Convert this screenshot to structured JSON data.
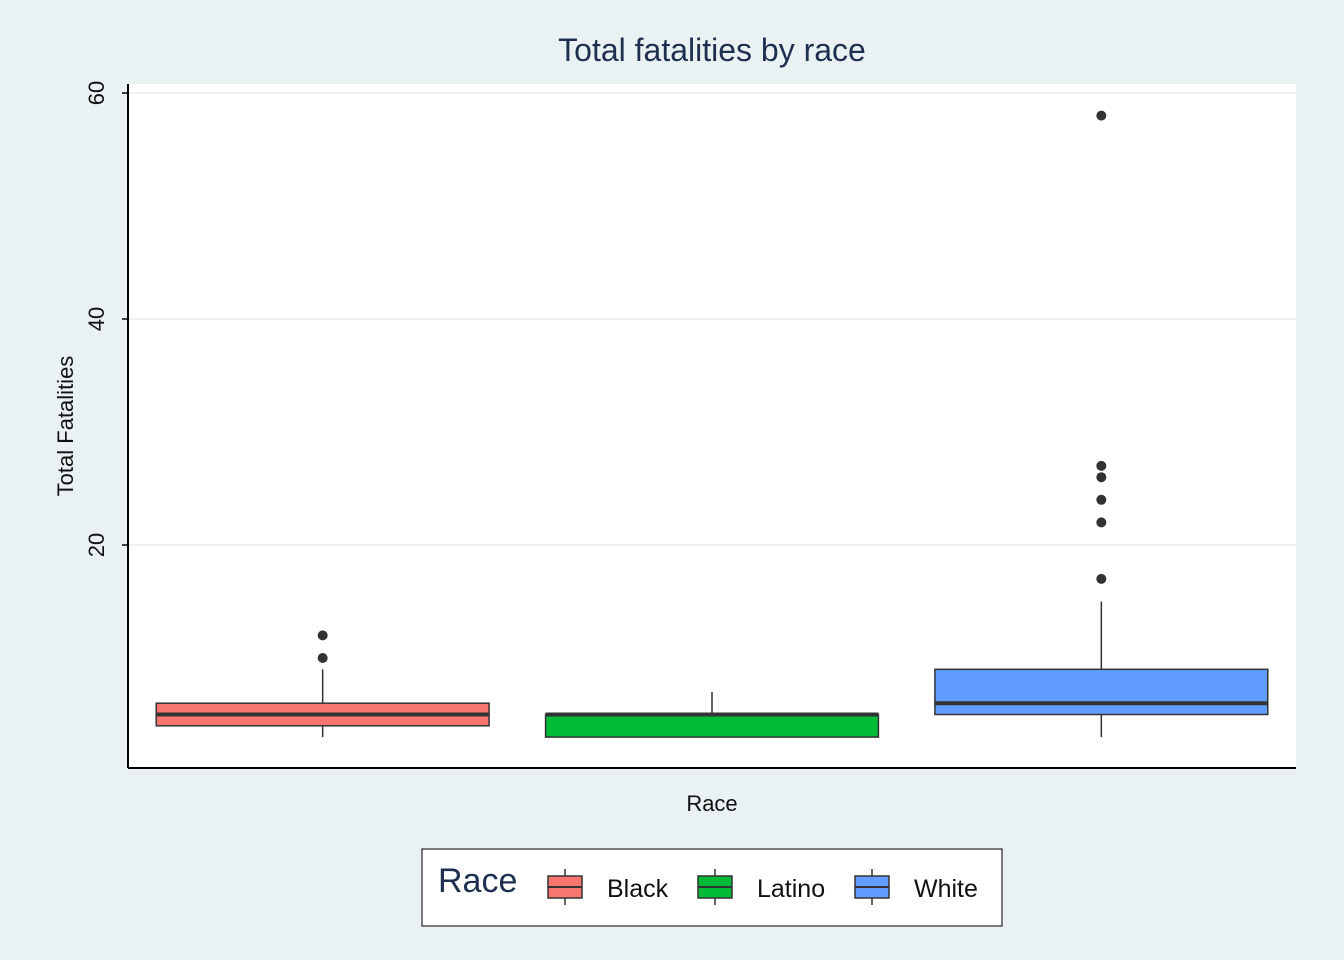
{
  "chart_data": {
    "type": "box",
    "title": "Total fatalities by race",
    "xlabel": "Race",
    "ylabel": "Total Fatalities",
    "ylim": [
      0,
      61
    ],
    "yticks": [
      20,
      40,
      60
    ],
    "grid": "horizontal",
    "legend": {
      "title": "Race",
      "position": "bottom"
    },
    "series": [
      {
        "name": "Black",
        "color": "#f8766d",
        "whisker_low": 3,
        "q1": 4,
        "median": 5,
        "q3": 6,
        "whisker_high": 9,
        "outliers": [
          10,
          12
        ]
      },
      {
        "name": "Latino",
        "color": "#00ba38",
        "whisker_low": 3,
        "q1": 3,
        "median": 5,
        "q3": 5,
        "whisker_high": 7,
        "outliers": []
      },
      {
        "name": "White",
        "color": "#619cff",
        "whisker_low": 3,
        "q1": 5,
        "median": 6,
        "q3": 9,
        "whisker_high": 15,
        "outliers": [
          17,
          22,
          24,
          26,
          27,
          58
        ]
      }
    ]
  }
}
